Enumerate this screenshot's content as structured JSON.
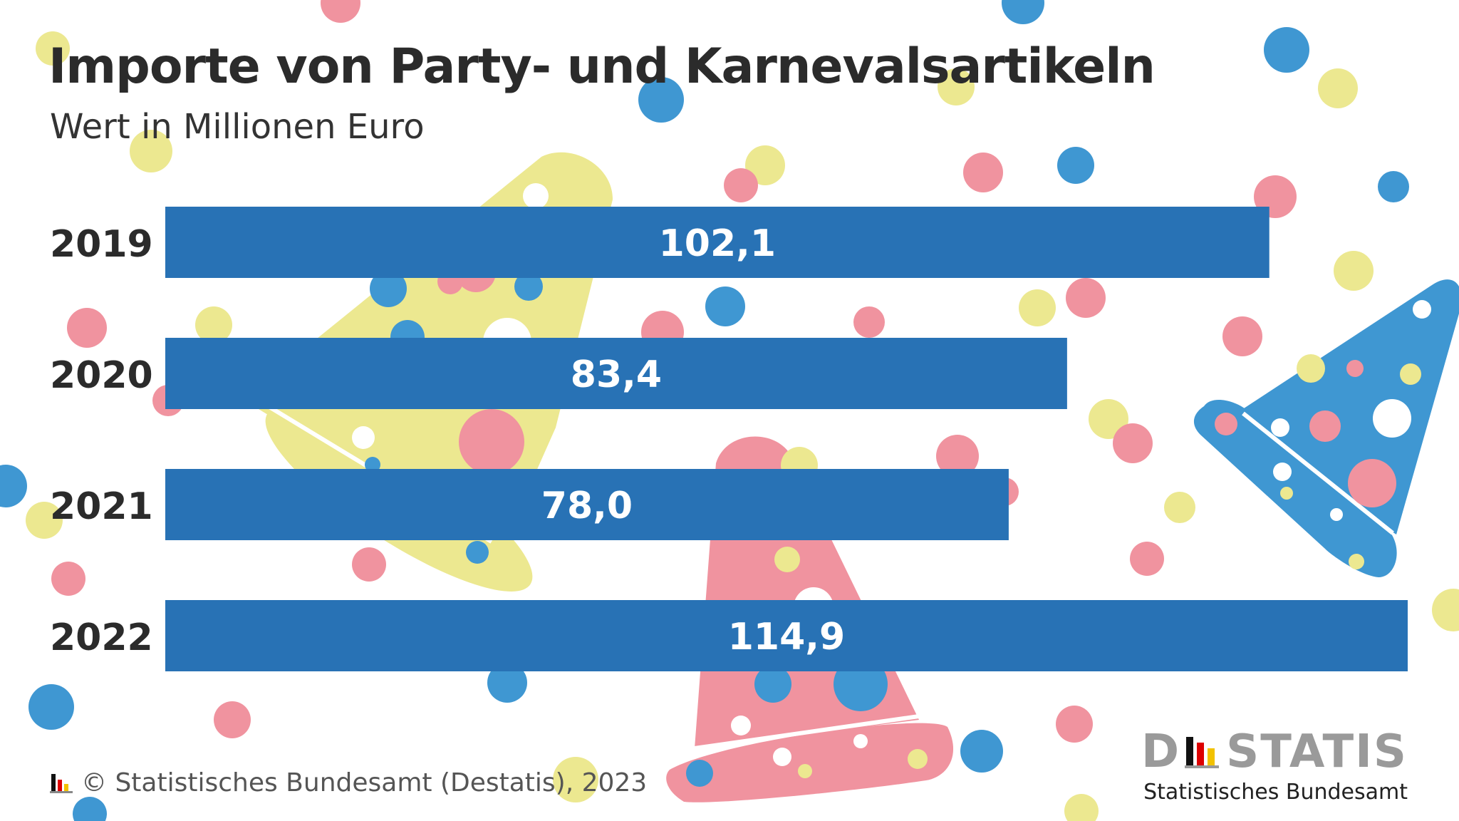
{
  "title": "Importe von Party- und Karnevalsartikeln",
  "subtitle": "Wert in Millionen Euro",
  "source": "© Statistisches Bundesamt (Destatis), 2023",
  "brand": {
    "left": "D",
    "right": "STATIS",
    "sub": "Statistisches Bundesamt"
  },
  "colors": {
    "bar": "#2872b5",
    "pink": "#f0939f",
    "yellow": "#ece890",
    "blue": "#3f97d2",
    "text": "#2b2b2b"
  },
  "chart_data": {
    "type": "bar",
    "orientation": "horizontal",
    "categories": [
      "2019",
      "2020",
      "2021",
      "2022"
    ],
    "values": [
      102.1,
      83.4,
      78.0,
      114.9
    ],
    "value_labels": [
      "102,1",
      "83,4",
      "78,0",
      "114,9"
    ],
    "xlim": [
      0,
      114.9
    ],
    "grid": false
  }
}
